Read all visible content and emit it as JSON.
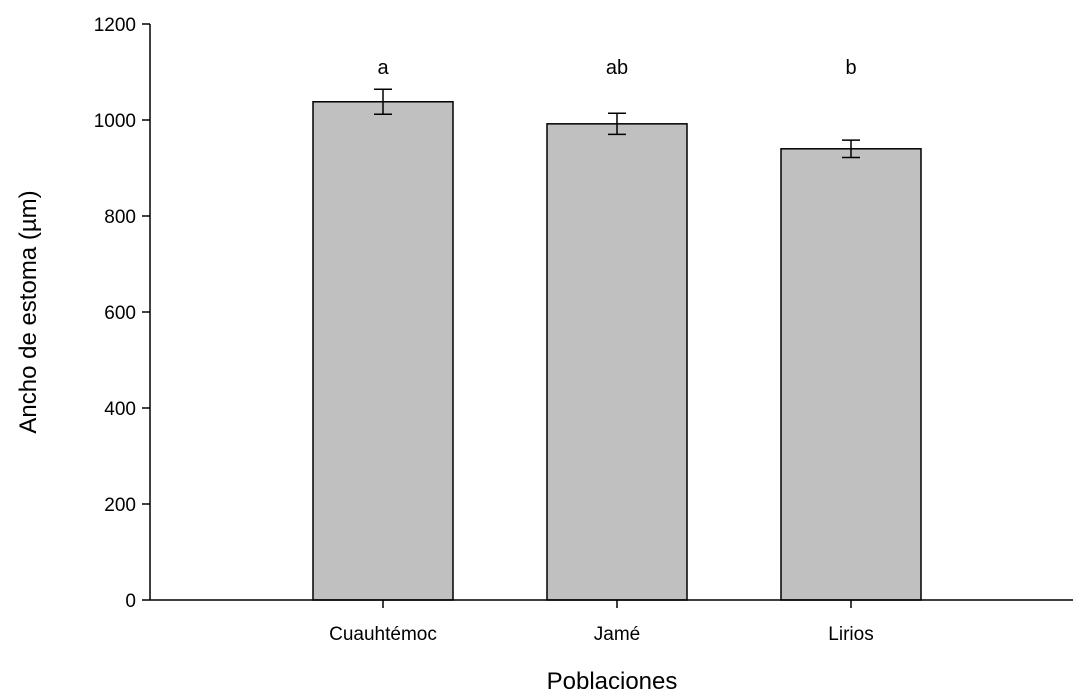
{
  "chart_data": {
    "type": "bar",
    "title": "",
    "xlabel": "Poblaciones",
    "ylabel": "Ancho de estoma (µm)",
    "categories": [
      "Cuauhtémoc",
      "Jamé",
      "Lirios"
    ],
    "values": [
      1038,
      992,
      940
    ],
    "errors": [
      26,
      22,
      18
    ],
    "significance_letters": [
      "a",
      "ab",
      "b"
    ],
    "ylim": [
      0,
      1200
    ],
    "yticks": [
      0,
      200,
      400,
      600,
      800,
      1000,
      1200
    ],
    "ytick_labels": [
      "0",
      "200",
      "400",
      "600",
      "800",
      "1000",
      "1200"
    ],
    "grid": false,
    "bar_color": "#c0c0c0",
    "bar_edge_color": "#000000"
  }
}
